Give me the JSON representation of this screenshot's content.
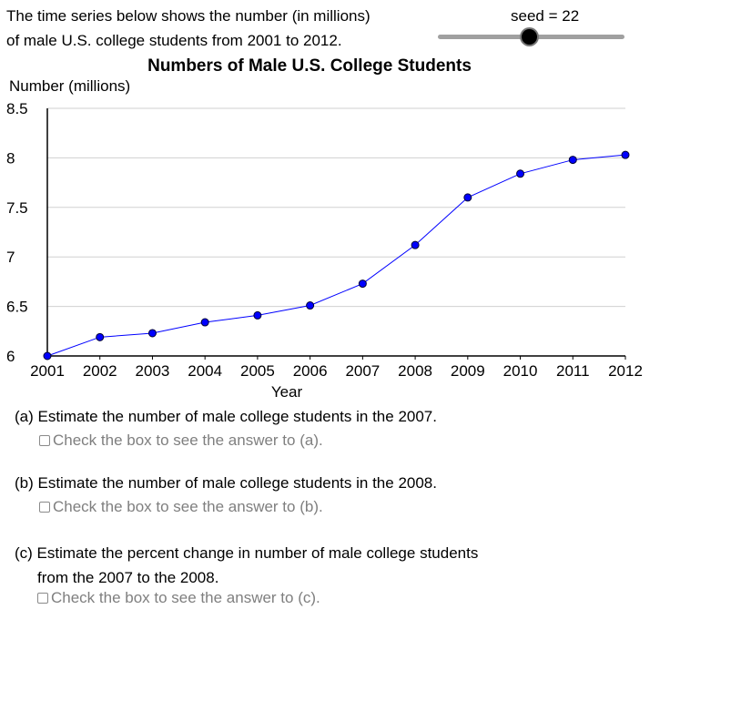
{
  "intro": {
    "line1": "The time series below shows the number (in millions)",
    "line2": "of male U.S. college students from 2001 to 2012."
  },
  "slider": {
    "label": "seed = 22",
    "value": 22,
    "position_fraction": 0.49
  },
  "chart_data": {
    "type": "line",
    "title": "Numbers of Male U.S. College Students",
    "xlabel": "Year",
    "ylabel": "Number (millions)",
    "x": [
      2001,
      2002,
      2003,
      2004,
      2005,
      2006,
      2007,
      2008,
      2009,
      2010,
      2011,
      2012
    ],
    "values": [
      6.0,
      6.19,
      6.23,
      6.34,
      6.41,
      6.51,
      6.73,
      7.12,
      7.6,
      7.84,
      7.98,
      8.03
    ],
    "ylim": [
      6,
      8.5
    ],
    "yticks": [
      6,
      6.5,
      7,
      7.5,
      8,
      8.5
    ],
    "ytick_labels": [
      "6",
      "6.5",
      "7",
      "7.5",
      "8",
      "8.5"
    ],
    "grid": true,
    "line_color": "#0000ff",
    "point_color": "#0000ff"
  },
  "questions": {
    "a": {
      "text": "(a) Estimate the number of male college students in the 2007.",
      "check": "Check the box to see the answer to (a)."
    },
    "b": {
      "text": "(b) Estimate the number of male college students in the 2008.",
      "check": "Check the box to see the answer to (b)."
    },
    "c": {
      "text1": "(c) Estimate the percent change in number of male college students",
      "text2": "from the 2007 to the 2008.",
      "check": "Check the box to see the answer to (c)."
    }
  }
}
